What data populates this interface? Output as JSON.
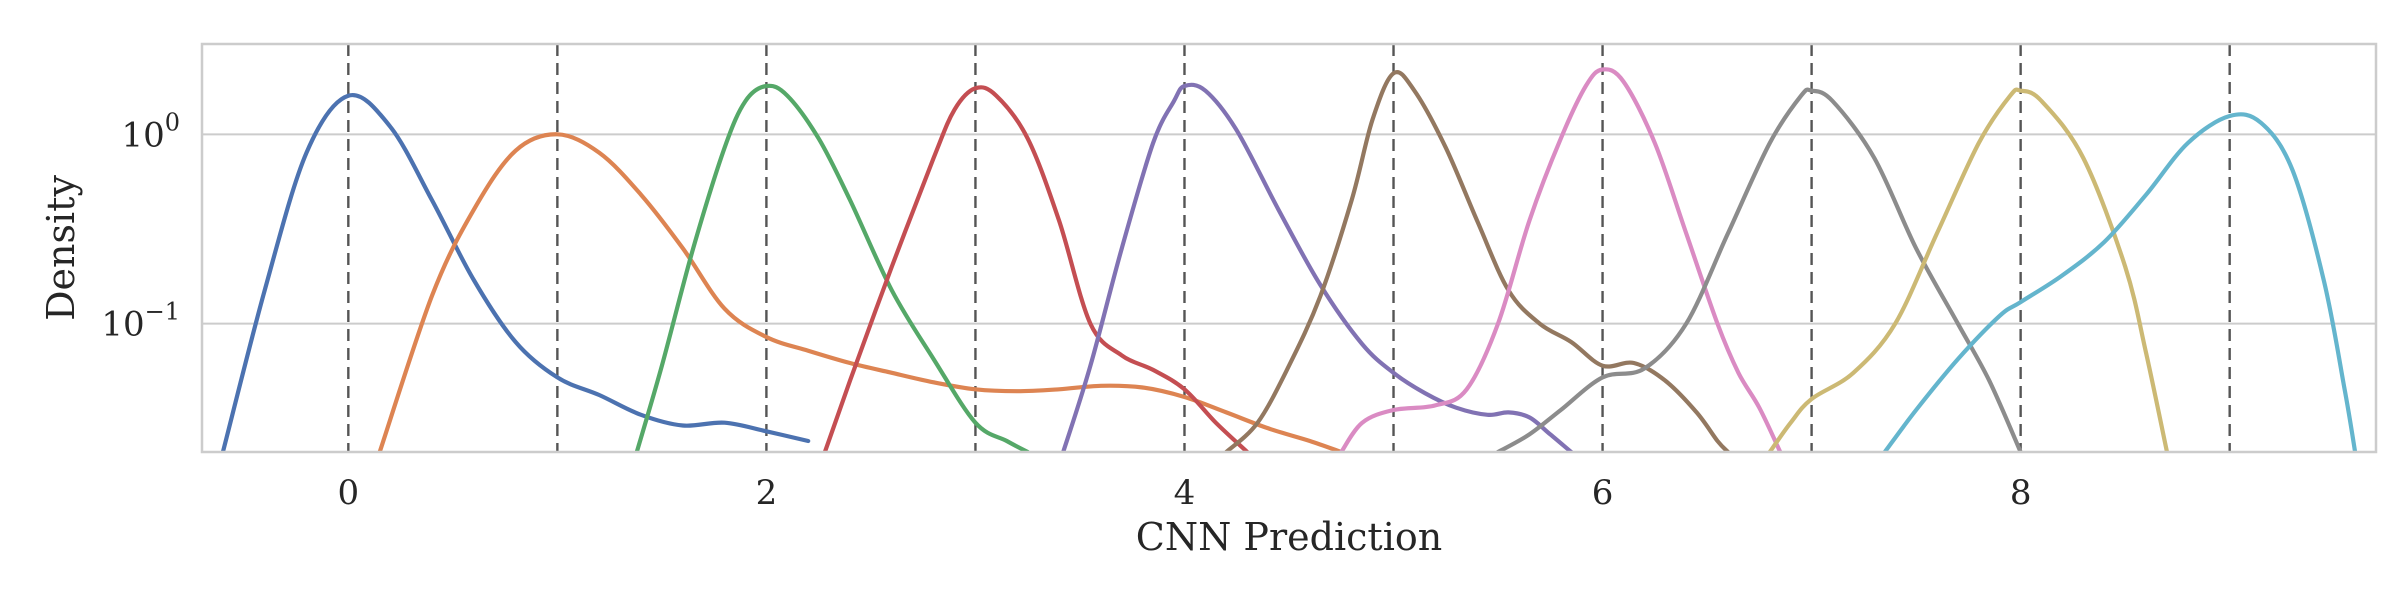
{
  "chart_data": {
    "type": "line",
    "title": "",
    "xlabel": "CNN Prediction",
    "ylabel": "Density",
    "yscale": "log",
    "xlim": [
      -0.7,
      9.7
    ],
    "ylim": [
      0.021,
      3.0
    ],
    "x_ticks": [
      {
        "value": 0,
        "label": "0"
      },
      {
        "value": 2,
        "label": "2"
      },
      {
        "value": 4,
        "label": "4"
      },
      {
        "value": 6,
        "label": "6"
      },
      {
        "value": 8,
        "label": "8"
      }
    ],
    "y_ticks": [
      {
        "value": 1,
        "base": "10",
        "exp": "0"
      },
      {
        "value": 0.1,
        "base": "10",
        "exp": "−1"
      }
    ],
    "grid": "horizontal",
    "reference_lines_x": [
      0,
      1,
      2,
      3,
      4,
      5,
      6,
      7,
      8,
      9
    ],
    "series": [
      {
        "color": "#4c72b0",
        "points": [
          [
            -0.6,
            0.021
          ],
          [
            -0.4,
            0.15
          ],
          [
            -0.2,
            0.8
          ],
          [
            0,
            1.6
          ],
          [
            0.2,
            1.1
          ],
          [
            0.4,
            0.45
          ],
          [
            0.6,
            0.17
          ],
          [
            0.8,
            0.08
          ],
          [
            1.0,
            0.052
          ],
          [
            1.2,
            0.042
          ],
          [
            1.4,
            0.033
          ],
          [
            1.6,
            0.029
          ],
          [
            1.8,
            0.03
          ],
          [
            2.0,
            0.027
          ],
          [
            2.2,
            0.024
          ]
        ]
      },
      {
        "color": "#dd8452",
        "points": [
          [
            0.15,
            0.021
          ],
          [
            0.4,
            0.14
          ],
          [
            0.6,
            0.4
          ],
          [
            0.8,
            0.82
          ],
          [
            1.0,
            1.0
          ],
          [
            1.2,
            0.8
          ],
          [
            1.4,
            0.48
          ],
          [
            1.6,
            0.25
          ],
          [
            1.8,
            0.12
          ],
          [
            2.0,
            0.085
          ],
          [
            2.2,
            0.072
          ],
          [
            2.4,
            0.062
          ],
          [
            2.6,
            0.055
          ],
          [
            2.8,
            0.049
          ],
          [
            3.0,
            0.045
          ],
          [
            3.2,
            0.044
          ],
          [
            3.4,
            0.045
          ],
          [
            3.6,
            0.047
          ],
          [
            3.8,
            0.046
          ],
          [
            4.0,
            0.041
          ],
          [
            4.2,
            0.034
          ],
          [
            4.4,
            0.028
          ],
          [
            4.6,
            0.024
          ],
          [
            4.75,
            0.021
          ]
        ]
      },
      {
        "color": "#55a868",
        "points": [
          [
            1.38,
            0.021
          ],
          [
            1.5,
            0.06
          ],
          [
            1.65,
            0.25
          ],
          [
            1.8,
            0.85
          ],
          [
            1.9,
            1.5
          ],
          [
            2.0,
            1.8
          ],
          [
            2.1,
            1.6
          ],
          [
            2.25,
            0.95
          ],
          [
            2.4,
            0.45
          ],
          [
            2.6,
            0.15
          ],
          [
            2.8,
            0.065
          ],
          [
            3.0,
            0.03
          ],
          [
            3.15,
            0.024
          ],
          [
            3.25,
            0.021
          ]
        ]
      },
      {
        "color": "#c44e52",
        "points": [
          [
            2.28,
            0.021
          ],
          [
            2.4,
            0.05
          ],
          [
            2.6,
            0.2
          ],
          [
            2.8,
            0.75
          ],
          [
            2.9,
            1.35
          ],
          [
            3.0,
            1.75
          ],
          [
            3.1,
            1.6
          ],
          [
            3.25,
            0.95
          ],
          [
            3.4,
            0.35
          ],
          [
            3.55,
            0.1
          ],
          [
            3.7,
            0.068
          ],
          [
            3.85,
            0.057
          ],
          [
            4.0,
            0.045
          ],
          [
            4.15,
            0.03
          ],
          [
            4.3,
            0.021
          ]
        ]
      },
      {
        "color": "#8172b3",
        "points": [
          [
            3.42,
            0.021
          ],
          [
            3.55,
            0.06
          ],
          [
            3.7,
            0.25
          ],
          [
            3.85,
            0.9
          ],
          [
            3.95,
            1.5
          ],
          [
            4.0,
            1.8
          ],
          [
            4.1,
            1.7
          ],
          [
            4.25,
            1.05
          ],
          [
            4.45,
            0.4
          ],
          [
            4.65,
            0.16
          ],
          [
            4.85,
            0.078
          ],
          [
            5.0,
            0.055
          ],
          [
            5.15,
            0.043
          ],
          [
            5.3,
            0.036
          ],
          [
            5.45,
            0.033
          ],
          [
            5.55,
            0.034
          ],
          [
            5.65,
            0.032
          ],
          [
            5.75,
            0.026
          ],
          [
            5.85,
            0.021
          ]
        ]
      },
      {
        "color": "#937860",
        "points": [
          [
            4.2,
            0.021
          ],
          [
            4.35,
            0.03
          ],
          [
            4.5,
            0.06
          ],
          [
            4.65,
            0.14
          ],
          [
            4.8,
            0.45
          ],
          [
            4.9,
            1.2
          ],
          [
            5.0,
            2.1
          ],
          [
            5.1,
            1.7
          ],
          [
            5.25,
            0.85
          ],
          [
            5.4,
            0.35
          ],
          [
            5.55,
            0.15
          ],
          [
            5.7,
            0.1
          ],
          [
            5.85,
            0.08
          ],
          [
            6.0,
            0.06
          ],
          [
            6.15,
            0.062
          ],
          [
            6.3,
            0.05
          ],
          [
            6.45,
            0.034
          ],
          [
            6.55,
            0.024
          ],
          [
            6.6,
            0.021
          ]
        ]
      },
      {
        "color": "#da8bc3",
        "points": [
          [
            4.75,
            0.021
          ],
          [
            4.85,
            0.03
          ],
          [
            5.0,
            0.035
          ],
          [
            5.2,
            0.037
          ],
          [
            5.35,
            0.045
          ],
          [
            5.5,
            0.1
          ],
          [
            5.65,
            0.35
          ],
          [
            5.8,
            0.95
          ],
          [
            5.92,
            1.8
          ],
          [
            6.0,
            2.2
          ],
          [
            6.1,
            1.9
          ],
          [
            6.25,
            0.9
          ],
          [
            6.4,
            0.3
          ],
          [
            6.55,
            0.1
          ],
          [
            6.65,
            0.055
          ],
          [
            6.75,
            0.036
          ],
          [
            6.85,
            0.021
          ]
        ]
      },
      {
        "color": "#8c8c8c",
        "points": [
          [
            5.5,
            0.021
          ],
          [
            5.65,
            0.026
          ],
          [
            5.8,
            0.035
          ],
          [
            6.0,
            0.052
          ],
          [
            6.2,
            0.058
          ],
          [
            6.4,
            0.1
          ],
          [
            6.6,
            0.3
          ],
          [
            6.8,
            0.9
          ],
          [
            6.95,
            1.6
          ],
          [
            7.0,
            1.7
          ],
          [
            7.1,
            1.5
          ],
          [
            7.3,
            0.75
          ],
          [
            7.5,
            0.25
          ],
          [
            7.7,
            0.1
          ],
          [
            7.85,
            0.05
          ],
          [
            8.0,
            0.021
          ]
        ]
      },
      {
        "color": "#ccb974",
        "points": [
          [
            6.8,
            0.021
          ],
          [
            6.9,
            0.03
          ],
          [
            7.0,
            0.04
          ],
          [
            7.2,
            0.055
          ],
          [
            7.4,
            0.1
          ],
          [
            7.6,
            0.3
          ],
          [
            7.8,
            0.9
          ],
          [
            7.95,
            1.6
          ],
          [
            8.0,
            1.7
          ],
          [
            8.1,
            1.5
          ],
          [
            8.3,
            0.75
          ],
          [
            8.5,
            0.2
          ],
          [
            8.6,
            0.07
          ],
          [
            8.7,
            0.021
          ]
        ]
      },
      {
        "color": "#64b5cd",
        "points": [
          [
            7.35,
            0.021
          ],
          [
            7.5,
            0.035
          ],
          [
            7.7,
            0.065
          ],
          [
            7.9,
            0.11
          ],
          [
            8.0,
            0.13
          ],
          [
            8.2,
            0.18
          ],
          [
            8.4,
            0.27
          ],
          [
            8.6,
            0.48
          ],
          [
            8.8,
            0.9
          ],
          [
            9.0,
            1.25
          ],
          [
            9.15,
            1.15
          ],
          [
            9.3,
            0.65
          ],
          [
            9.45,
            0.17
          ],
          [
            9.55,
            0.045
          ],
          [
            9.6,
            0.021
          ]
        ]
      }
    ]
  }
}
